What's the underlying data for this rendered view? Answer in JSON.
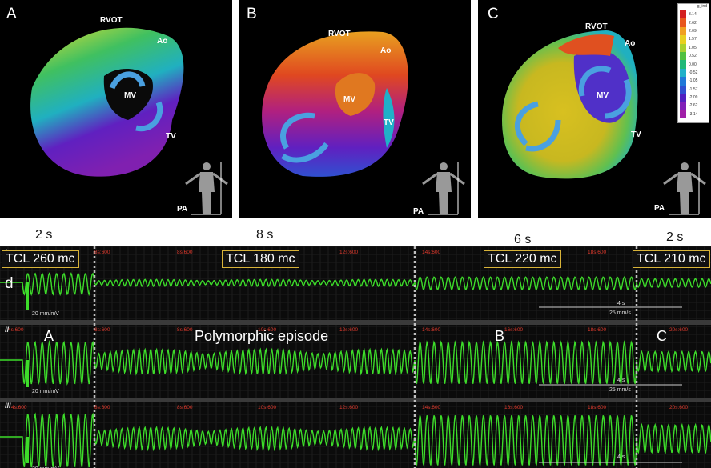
{
  "panels": [
    {
      "label": "A",
      "rvot": "RVOT",
      "ao": "Ao",
      "mv": "MV",
      "tv": "TV",
      "pa": "PA"
    },
    {
      "label": "B",
      "rvot": "RVOT",
      "ao": "Ao",
      "mv": "MV",
      "tv": "TV",
      "pa": "PA"
    },
    {
      "label": "C",
      "rvot": "RVOT",
      "ao": "Ao",
      "mv": "MV",
      "tv": "TV",
      "pa": "PA"
    }
  ],
  "colorbar": {
    "header": "g_ind",
    "values": [
      "3.14",
      "2.62",
      "2.09",
      "1.57",
      "1.05",
      "0.52",
      "0.00",
      "-0.52",
      "-1.05",
      "-1.57",
      "-2.09",
      "-2.62",
      "-3.14"
    ],
    "colors": [
      "#d42020",
      "#e8561c",
      "#f0a020",
      "#e8d020",
      "#a8d030",
      "#50c040",
      "#20b878",
      "#20b0c8",
      "#2078d8",
      "#3050d0",
      "#5020c0",
      "#8020b8",
      "#a020a8"
    ]
  },
  "durations": [
    "2 s",
    "8 s",
    "6 s",
    "2 s"
  ],
  "tcl": [
    "TCL 260 mc",
    "TCL 180 mc",
    "TCL 220 mc",
    "TCL 210 mc"
  ],
  "annotations": {
    "d": "d",
    "poly": "Polymorphic episode",
    "a": "A",
    "b": "B",
    "c": "C"
  },
  "leads": [
    "I",
    "II",
    "III"
  ],
  "time_marks": [
    "4s:600",
    "8s:600",
    "10s:600",
    "12s:600",
    "14s:600",
    "16s:600",
    "18s:600",
    "20s:600"
  ],
  "scale": {
    "amp": "20 mm/mV",
    "time": "4 s",
    "speed": "25 mm/s"
  },
  "colors": {
    "trace": "#3ddc2a",
    "divider": "#bfbfbf",
    "tcl_border": "#d8b338",
    "time_mark": "#e23b2e"
  }
}
